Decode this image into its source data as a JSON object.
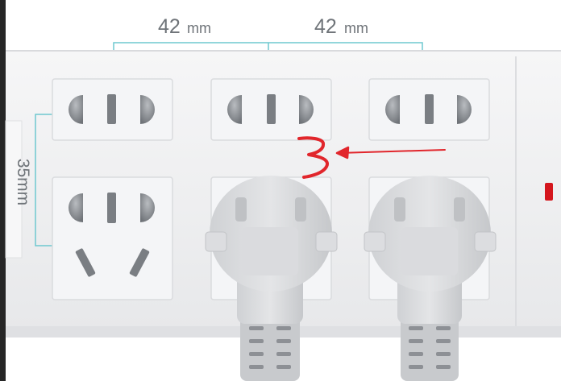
{
  "photo": {
    "dimension_top_left": "42",
    "dimension_top_right": "42",
    "dimension_top_unit": "mm",
    "dimension_side": "35mm",
    "colors": {
      "strip_body": "#f1f2f4",
      "outlet_panel": "#f4f5f7",
      "dimension_line": "#6ec8cf",
      "annotation": "#e1262c",
      "indicator": "#d4161d",
      "plug": "#d7d9dc"
    }
  }
}
